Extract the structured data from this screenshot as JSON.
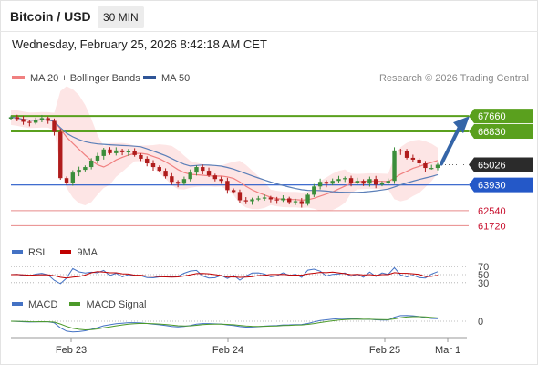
{
  "header": {
    "title": "Bitcoin / USD",
    "timeframe": "30 MIN"
  },
  "timestamp": "Wednesday, February 25, 2026 8:42:18 AM CET",
  "legend": {
    "ma20": {
      "label": "MA 20 + Bollinger Bands",
      "color": "#f08080"
    },
    "ma50": {
      "label": "MA 50",
      "color": "#2f5597"
    },
    "credit": "Research © 2026 Trading Central"
  },
  "colors": {
    "up": "#3b8e3b",
    "down": "#b01c1c",
    "resistance": "#5aa01e",
    "support": "#2458c8",
    "target": "#c8102e",
    "arrow": "#3565a8"
  },
  "chart_data": {
    "type": "candlestick",
    "x_ticks": [
      "Feb 23",
      "Feb 24",
      "Feb 25",
      "Mar 1"
    ],
    "y_range": [
      61000,
      69200
    ],
    "price_series_approx": [
      67600,
      67500,
      67350,
      67300,
      67450,
      67550,
      67400,
      66800,
      64300,
      64050,
      64600,
      64750,
      64900,
      65250,
      65500,
      65850,
      65650,
      65800,
      65700,
      65750,
      65550,
      65350,
      65100,
      64900,
      64700,
      64400,
      64100,
      64000,
      64250,
      64600,
      64900,
      64700,
      64450,
      64250,
      64150,
      63650,
      63550,
      63100,
      63050,
      63150,
      63200,
      63250,
      63150,
      63100,
      63200,
      63000,
      63050,
      62900,
      63400,
      63850,
      64100,
      64000,
      64150,
      64250,
      64300,
      64050,
      64150,
      64000,
      64250,
      63950,
      64050,
      64150,
      65800,
      65750,
      65400,
      65300,
      65100,
      64850,
      64850,
      65026
    ],
    "levels": [
      {
        "value": 67660,
        "label": "67660",
        "kind": "resistance"
      },
      {
        "value": 66830,
        "label": "66830",
        "kind": "resistance"
      },
      {
        "value": 65026,
        "label": "65026",
        "kind": "last"
      },
      {
        "value": 63930,
        "label": "63930",
        "kind": "pivot"
      },
      {
        "value": 62540,
        "label": "62540",
        "kind": "support"
      },
      {
        "value": 61720,
        "label": "61720",
        "kind": "support"
      }
    ],
    "rsi": {
      "legend": [
        {
          "label": "RSI",
          "color": "#4472c4"
        },
        {
          "label": "9MA",
          "color": "#c00000"
        }
      ],
      "levels": [
        {
          "label": "70",
          "value": 70
        },
        {
          "label": "50",
          "value": 50
        },
        {
          "label": "30",
          "value": 30
        }
      ]
    },
    "macd": {
      "legend": [
        {
          "label": "MACD",
          "color": "#4472c4"
        },
        {
          "label": "MACD Signal",
          "color": "#4c9a2a"
        }
      ],
      "zero_label": "0"
    }
  }
}
